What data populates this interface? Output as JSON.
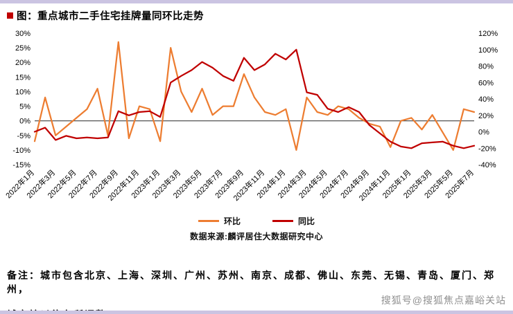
{
  "title": "图：重点城市二手住宅挂牌量同环比走势",
  "legend": {
    "mom": "环比",
    "yoy": "同比"
  },
  "source": "数据来源:麟评居住大数据研究中心",
  "note": {
    "line1": "备注：城市包含北京、上海、深圳、广州、苏州、南京、成都、佛山、东莞、无锡、青岛、厦门、郑州，",
    "line2": "城市较以往有所调整。"
  },
  "watermark": "搜狐号@搜狐焦点嘉峪关站",
  "colors": {
    "accent_square": "#c00000",
    "edge_band": "#cbc4e2",
    "zero_axis": "#262626"
  },
  "chart_data": {
    "type": "line",
    "title": "重点城市二手住宅挂牌量同环比走势",
    "x_label_step": 2,
    "x": [
      "2022年1月",
      "2022年2月",
      "2022年3月",
      "2022年4月",
      "2022年5月",
      "2022年6月",
      "2022年7月",
      "2022年8月",
      "2022年9月",
      "2022年10月",
      "2022年11月",
      "2022年12月",
      "2023年1月",
      "2023年2月",
      "2023年3月",
      "2023年4月",
      "2023年5月",
      "2023年6月",
      "2023年7月",
      "2023年8月",
      "2023年9月",
      "2023年10月",
      "2023年11月",
      "2023年12月",
      "2024年1月",
      "2024年2月",
      "2024年3月",
      "2024年4月",
      "2024年5月",
      "2024年6月",
      "2024年7月",
      "2024年8月",
      "2024年9月",
      "2024年10月",
      "2024年11月",
      "2024年12月",
      "2025年1月",
      "2025年2月",
      "2025年3月",
      "2025年4月",
      "2025年5月",
      "2025年6月",
      "2025年7月"
    ],
    "left_axis": {
      "min": -15,
      "max": 30,
      "ticks": [
        30,
        25,
        20,
        15,
        10,
        5,
        0,
        -5,
        -10,
        -15
      ],
      "format": "percent"
    },
    "right_axis": {
      "min": -40,
      "max": 120,
      "ticks": [
        120,
        100,
        80,
        60,
        40,
        20,
        0,
        -20,
        -40
      ],
      "format": "percent"
    },
    "grid": false,
    "legend_position": "bottom",
    "series": [
      {
        "name": "环比",
        "axis": "left",
        "color": "#ed7d31",
        "values": [
          -7,
          8,
          -5,
          -2,
          1,
          4,
          11,
          -5,
          27,
          -6,
          5,
          4,
          -7,
          25,
          10,
          3,
          11,
          2,
          5,
          5,
          16,
          8,
          3,
          2,
          4,
          -10,
          8,
          3,
          2,
          5,
          4,
          1,
          -1,
          -2,
          -9,
          0,
          1,
          -3,
          2,
          -4,
          -10,
          4,
          3
        ]
      },
      {
        "name": "同比",
        "axis": "right",
        "color": "#c00000",
        "values": [
          0,
          5,
          -10,
          -5,
          -8,
          -7,
          -8,
          -7,
          25,
          20,
          24,
          25,
          18,
          60,
          68,
          75,
          85,
          78,
          68,
          62,
          90,
          75,
          82,
          95,
          88,
          100,
          48,
          45,
          28,
          24,
          30,
          24,
          8,
          -2,
          -12,
          -18,
          -20,
          -14,
          -13,
          -12,
          -17,
          -20,
          -17
        ]
      }
    ]
  }
}
